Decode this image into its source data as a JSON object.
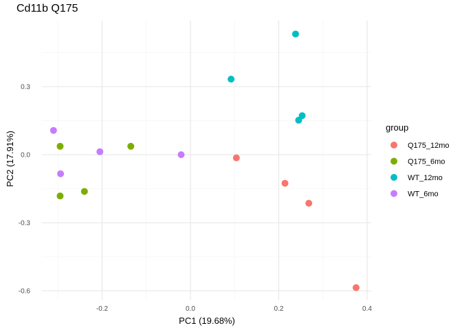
{
  "chart_data": {
    "type": "scatter",
    "title": "Cd11b Q175",
    "xlabel": "PC1 (19.68%)",
    "ylabel": "PC2 (17.91%)",
    "xlim": [
      -0.325,
      0.41
    ],
    "ylim": [
      -0.62,
      0.58
    ],
    "x_ticks": [
      -0.2,
      0.0,
      0.2,
      0.4
    ],
    "x_tick_labels": [
      "-0.2",
      "0.0",
      "0.2",
      "0.4"
    ],
    "y_ticks": [
      -0.6,
      -0.3,
      0.0,
      0.3
    ],
    "y_tick_labels": [
      "-0.6",
      "-0.3",
      "0.0",
      "0.3"
    ],
    "grid": true,
    "legend": {
      "title": "group",
      "position": "right"
    },
    "series": [
      {
        "name": "Q175_12mo",
        "color": "#F8766D",
        "points": [
          {
            "x": 0.104,
            "y": -0.014
          },
          {
            "x": 0.214,
            "y": -0.126
          },
          {
            "x": 0.268,
            "y": -0.214
          },
          {
            "x": 0.375,
            "y": -0.586
          }
        ]
      },
      {
        "name": "Q175_6mo",
        "color": "#7CAE00",
        "points": [
          {
            "x": -0.295,
            "y": 0.037
          },
          {
            "x": -0.295,
            "y": -0.182
          },
          {
            "x": -0.24,
            "y": -0.162
          },
          {
            "x": -0.135,
            "y": 0.037
          }
        ]
      },
      {
        "name": "WT_12mo",
        "color": "#00BFC4",
        "points": [
          {
            "x": 0.092,
            "y": 0.333
          },
          {
            "x": 0.238,
            "y": 0.532
          },
          {
            "x": 0.245,
            "y": 0.152
          },
          {
            "x": 0.253,
            "y": 0.172
          }
        ]
      },
      {
        "name": "WT_6mo",
        "color": "#C77CFF",
        "points": [
          {
            "x": -0.31,
            "y": 0.107
          },
          {
            "x": -0.294,
            "y": -0.084
          },
          {
            "x": -0.205,
            "y": 0.013
          },
          {
            "x": -0.021,
            "y": 0.0
          }
        ]
      }
    ]
  }
}
